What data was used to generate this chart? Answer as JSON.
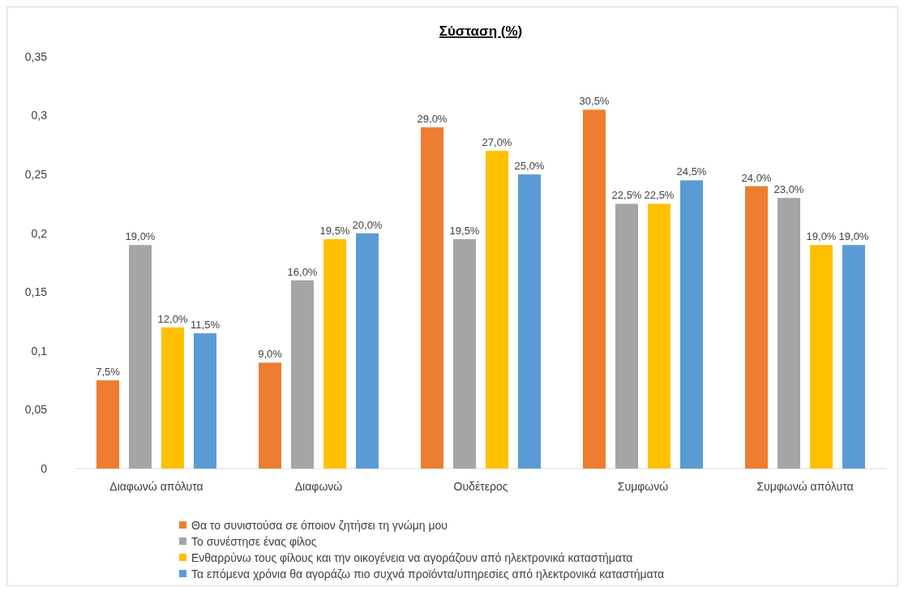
{
  "chart_data": {
    "type": "bar",
    "title": "Σύσταση (%)",
    "categories": [
      "Διαφωνώ απόλυτα",
      "Διαφωνώ",
      "Ουδέτερος",
      "Συμφωνώ",
      "Συμφωνώ απόλυτα"
    ],
    "series": [
      {
        "name": "Θα το συνιστούσα σε όποιον ζητήσει τη γνώμη μου",
        "color": "#ed7d31",
        "values": [
          0.075,
          0.09,
          0.29,
          0.305,
          0.24
        ],
        "value_labels": [
          "7,5%",
          "9,0%",
          "29,0%",
          "30,5%",
          "24,0%"
        ]
      },
      {
        "name": "Το συνέστησε ένας φίλος",
        "color": "#a5a5a5",
        "values": [
          0.19,
          0.16,
          0.195,
          0.225,
          0.23
        ],
        "value_labels": [
          "19,0%",
          "16,0%",
          "19,5%",
          "22,5%",
          "23,0%"
        ]
      },
      {
        "name": "Ενθαρρύνω τους φίλους και την οικογένεια να αγοράζουν από ηλεκτρονικά καταστήματα",
        "color": "#ffc000",
        "values": [
          0.12,
          0.195,
          0.27,
          0.225,
          0.19
        ],
        "value_labels": [
          "12,0%",
          "19,5%",
          "27,0%",
          "22,5%",
          "19,0%"
        ]
      },
      {
        "name": "Τα επόμενα χρόνια θα αγοράζω πιο συχνά προϊόντα/υπηρεσίες από ηλεκτρονικά καταστήματα",
        "color": "#5b9bd5",
        "values": [
          0.115,
          0.2,
          0.25,
          0.245,
          0.19
        ],
        "value_labels": [
          "11,5%",
          "20,0%",
          "25,0%",
          "24,5%",
          "19,0%"
        ]
      }
    ],
    "ylim": [
      0,
      0.35
    ],
    "yticks": [
      {
        "value": 0,
        "label": "0"
      },
      {
        "value": 0.05,
        "label": "0,05"
      },
      {
        "value": 0.1,
        "label": "0,1"
      },
      {
        "value": 0.15,
        "label": "0,15"
      },
      {
        "value": 0.2,
        "label": "0,2"
      },
      {
        "value": 0.25,
        "label": "0,25"
      },
      {
        "value": 0.3,
        "label": "0,3"
      },
      {
        "value": 0.35,
        "label": "0,35"
      }
    ],
    "grid": false,
    "legend": "bottom"
  }
}
